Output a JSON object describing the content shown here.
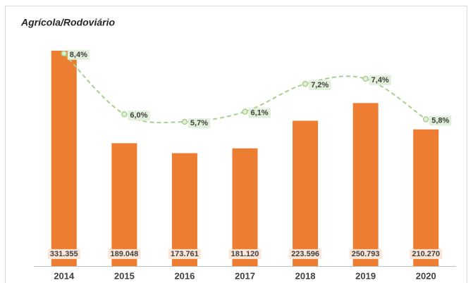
{
  "chart_data": {
    "type": "bar",
    "title": "Agrícola/Rodoviário",
    "categories": [
      "2014",
      "2015",
      "2016",
      "2017",
      "2018",
      "2019",
      "2020"
    ],
    "ylim": [
      0,
      366000
    ],
    "y2lim": [
      0,
      9.4
    ],
    "series": [
      {
        "type": "bar",
        "color": "#ed7d31",
        "values": [
          331355,
          189048,
          173761,
          181120,
          223596,
          250793,
          210270
        ],
        "value_labels": [
          "331.355",
          "189.048",
          "173.761",
          "181.120",
          "223.596",
          "250.793",
          "210.270"
        ]
      },
      {
        "type": "line",
        "axis": "y2",
        "color": "#a9d18e",
        "values": [
          8.4,
          6.0,
          5.7,
          6.1,
          7.2,
          7.4,
          5.8
        ],
        "value_labels": [
          "8,4%",
          "6,0%",
          "5,7%",
          "6,1%",
          "7,2%",
          "7,4%",
          "5,8%"
        ]
      }
    ]
  }
}
